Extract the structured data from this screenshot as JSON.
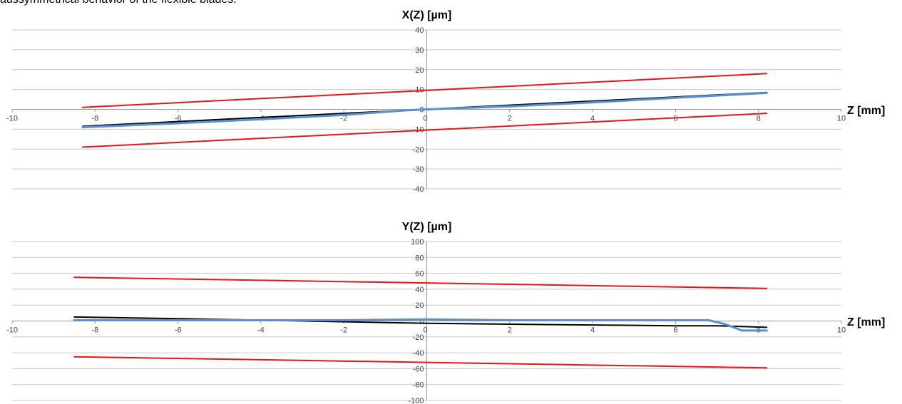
{
  "caption": "aussymmetrical behavior of the flexible blades.",
  "chart_data": [
    {
      "type": "line",
      "title": "X(Z) [µm]",
      "xlabel": "Z [mm]",
      "ylabel": "",
      "xlim": [
        -10,
        10
      ],
      "ylim": [
        -40,
        40
      ],
      "x_ticks": [
        "-10",
        "-8",
        "-6",
        "-4",
        "-2",
        "0",
        "2",
        "4",
        "6",
        "8",
        "10"
      ],
      "y_ticks": [
        "-40",
        "-30",
        "-20",
        "-10",
        "0",
        "10",
        "20",
        "30",
        "40"
      ],
      "grid": true,
      "series": [
        {
          "color": "#e8141c",
          "x": [
            -8.3,
            8.2
          ],
          "y": [
            1,
            18
          ]
        },
        {
          "color": "#e8141c",
          "x": [
            -8.3,
            8.2
          ],
          "y": [
            -19,
            -2
          ]
        },
        {
          "color": "#000000",
          "x": [
            -8.3,
            8.2
          ],
          "y": [
            -8.5,
            8.5
          ]
        },
        {
          "color": "#5b8fd1",
          "x": [
            -8.3,
            -6,
            -4,
            -2,
            -0.5,
            0,
            2,
            4,
            6,
            8.2
          ],
          "y": [
            -9,
            -7,
            -5,
            -2.8,
            -0.5,
            0,
            1.5,
            3.5,
            5.8,
            8.3
          ]
        }
      ]
    },
    {
      "type": "line",
      "title": "Y(Z) [µm]",
      "xlabel": "Z [mm]",
      "ylabel": "",
      "xlim": [
        -10,
        10
      ],
      "ylim": [
        -100,
        100
      ],
      "x_ticks": [
        "-10",
        "-8",
        "-6",
        "-4",
        "-2",
        "0",
        "2",
        "4",
        "6",
        "8",
        "10"
      ],
      "y_ticks": [
        "-100",
        "-80",
        "-60",
        "-40",
        "-20",
        "0",
        "20",
        "40",
        "60",
        "80",
        "100"
      ],
      "grid": true,
      "series": [
        {
          "color": "#e8141c",
          "x": [
            -8.5,
            8.2
          ],
          "y": [
            55,
            41
          ]
        },
        {
          "color": "#e8141c",
          "x": [
            -8.5,
            8.2
          ],
          "y": [
            -45,
            -59
          ]
        },
        {
          "color": "#000000",
          "x": [
            -8.5,
            -6,
            -4,
            -2,
            0,
            2,
            4,
            6,
            7,
            8.2
          ],
          "y": [
            5,
            3,
            1,
            -1,
            -3,
            -4,
            -5,
            -6,
            -6,
            -8
          ]
        },
        {
          "color": "#5b8fd1",
          "x": [
            -8.5,
            -6,
            -4,
            -2,
            0,
            2,
            4,
            6,
            6.8,
            7.2,
            7.6,
            8.2
          ],
          "y": [
            1,
            1,
            1,
            1,
            2,
            1,
            1,
            1,
            1,
            -4,
            -12,
            -12
          ]
        }
      ]
    }
  ]
}
